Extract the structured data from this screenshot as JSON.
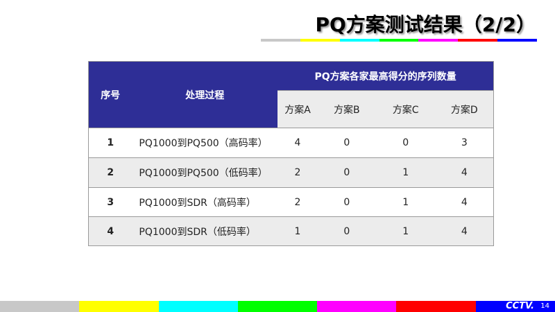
{
  "title": "PQ方案测试结果（2/2）",
  "colors": {
    "header": "#2e2e96",
    "stripes": [
      "#c8c8c8",
      "#ffff00",
      "#00ffff",
      "#00ff00",
      "#ff00ff",
      "#ff0000",
      "#0000ff"
    ]
  },
  "table": {
    "headers": {
      "index": "序号",
      "process": "处理过程",
      "group": "PQ方案各家最高得分的序列数量",
      "schemes": [
        "方案A",
        "方案B",
        "方案C",
        "方案D"
      ]
    },
    "rows": [
      {
        "index": "1",
        "process": "PQ1000到PQ500（高码率）",
        "values": [
          "4",
          "0",
          "0",
          "3"
        ]
      },
      {
        "index": "2",
        "process": "PQ1000到PQ500（低码率）",
        "values": [
          "2",
          "0",
          "1",
          "4"
        ]
      },
      {
        "index": "3",
        "process": "PQ1000到SDR（高码率）",
        "values": [
          "2",
          "0",
          "1",
          "4"
        ]
      },
      {
        "index": "4",
        "process": "PQ1000到SDR（低码率）",
        "values": [
          "1",
          "0",
          "1",
          "4"
        ]
      }
    ]
  },
  "footer": {
    "logo": "CCTV.",
    "page": "14"
  }
}
